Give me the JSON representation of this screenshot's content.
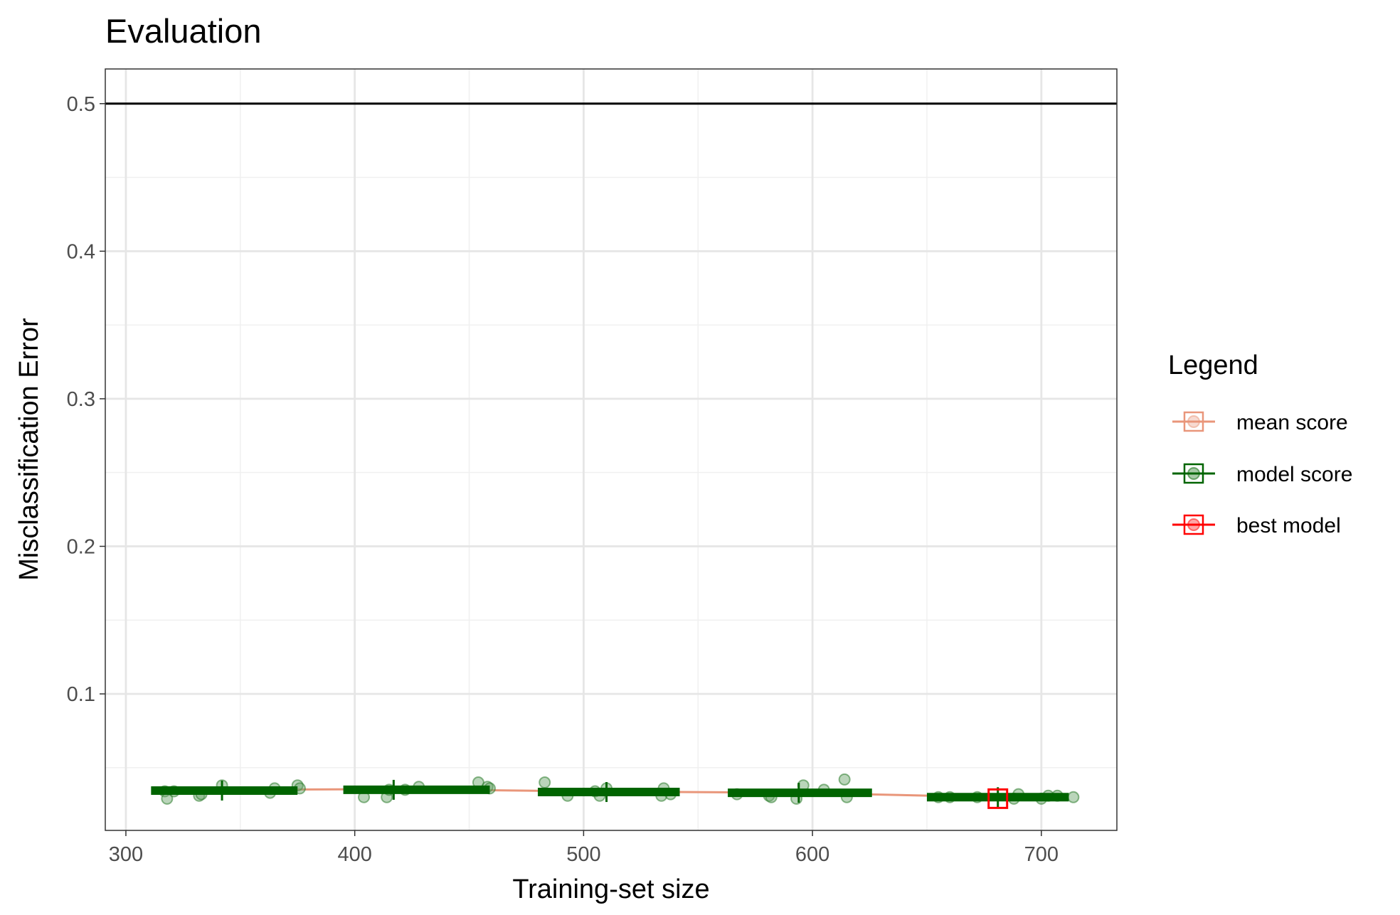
{
  "chart_data": {
    "type": "scatter",
    "title": "Evaluation",
    "xlabel": "Training-set size",
    "ylabel": "Misclassification Error",
    "xlim": [
      291,
      733
    ],
    "ylim": [
      0.0075,
      0.5235
    ],
    "x_ticks": [
      300,
      400,
      500,
      600,
      700
    ],
    "x_tick_labels": [
      "300",
      "400",
      "500",
      "600",
      "700"
    ],
    "y_ticks": [
      0.1,
      0.2,
      0.3,
      0.4,
      0.5
    ],
    "y_tick_labels": [
      "0.1",
      "0.2",
      "0.3",
      "0.4",
      "0.5"
    ],
    "grid": true,
    "reference_line": {
      "y": 0.5,
      "color": "#000000"
    },
    "legend": {
      "title": "Legend",
      "placement": "right",
      "entries": [
        {
          "label": "mean score",
          "color": "#E9967A"
        },
        {
          "label": "model score",
          "color": "#006400"
        },
        {
          "label": "best model",
          "color": "#FF0000"
        }
      ]
    },
    "mean_score": {
      "x": [
        343,
        417,
        510,
        593,
        681
      ],
      "y": [
        0.035,
        0.0355,
        0.0338,
        0.033,
        0.03
      ]
    },
    "model_score_ranges": [
      {
        "x_start": 311,
        "x_end": 375,
        "y": 0.0345,
        "tick_x": 342
      },
      {
        "x_start": 395,
        "x_end": 459,
        "y": 0.035,
        "tick_x": 417
      },
      {
        "x_start": 480,
        "x_end": 542,
        "y": 0.0335,
        "tick_x": 510
      },
      {
        "x_start": 563,
        "x_end": 626,
        "y": 0.033,
        "tick_x": 594
      },
      {
        "x_start": 650,
        "x_end": 712,
        "y": 0.03,
        "tick_x": 681
      }
    ],
    "model_score_points": [
      {
        "x": 317,
        "y": 0.034
      },
      {
        "x": 318,
        "y": 0.029
      },
      {
        "x": 321,
        "y": 0.034
      },
      {
        "x": 332,
        "y": 0.031
      },
      {
        "x": 333,
        "y": 0.032
      },
      {
        "x": 342,
        "y": 0.038
      },
      {
        "x": 363,
        "y": 0.033
      },
      {
        "x": 365,
        "y": 0.036
      },
      {
        "x": 375,
        "y": 0.038
      },
      {
        "x": 376,
        "y": 0.036
      },
      {
        "x": 404,
        "y": 0.03
      },
      {
        "x": 414,
        "y": 0.03
      },
      {
        "x": 415,
        "y": 0.035
      },
      {
        "x": 422,
        "y": 0.035
      },
      {
        "x": 428,
        "y": 0.037
      },
      {
        "x": 454,
        "y": 0.04
      },
      {
        "x": 458,
        "y": 0.037
      },
      {
        "x": 459,
        "y": 0.036
      },
      {
        "x": 483,
        "y": 0.04
      },
      {
        "x": 493,
        "y": 0.031
      },
      {
        "x": 505,
        "y": 0.034
      },
      {
        "x": 507,
        "y": 0.031
      },
      {
        "x": 510,
        "y": 0.036
      },
      {
        "x": 534,
        "y": 0.031
      },
      {
        "x": 535,
        "y": 0.036
      },
      {
        "x": 538,
        "y": 0.032
      },
      {
        "x": 567,
        "y": 0.032
      },
      {
        "x": 581,
        "y": 0.031
      },
      {
        "x": 582,
        "y": 0.03
      },
      {
        "x": 593,
        "y": 0.029
      },
      {
        "x": 596,
        "y": 0.038
      },
      {
        "x": 605,
        "y": 0.035
      },
      {
        "x": 614,
        "y": 0.042
      },
      {
        "x": 615,
        "y": 0.03
      },
      {
        "x": 655,
        "y": 0.03
      },
      {
        "x": 660,
        "y": 0.03
      },
      {
        "x": 672,
        "y": 0.03
      },
      {
        "x": 688,
        "y": 0.029
      },
      {
        "x": 690,
        "y": 0.032
      },
      {
        "x": 700,
        "y": 0.029
      },
      {
        "x": 703,
        "y": 0.031
      },
      {
        "x": 707,
        "y": 0.031
      },
      {
        "x": 714,
        "y": 0.03
      }
    ],
    "best_model": {
      "x": 681,
      "y": 0.029
    }
  }
}
